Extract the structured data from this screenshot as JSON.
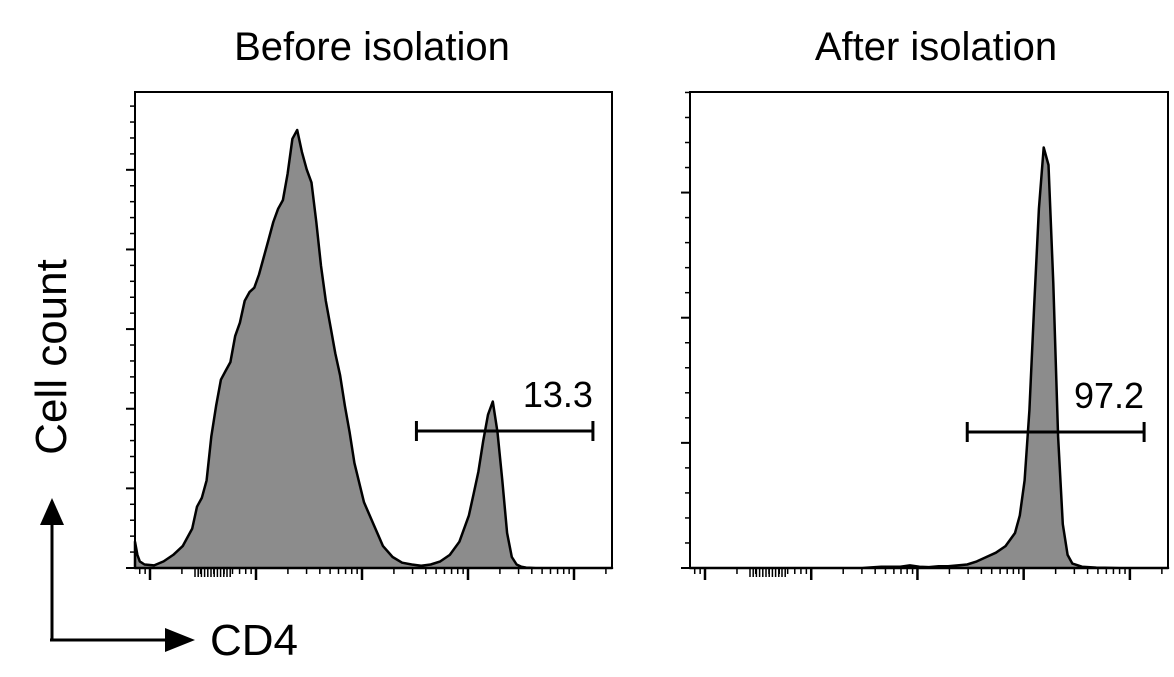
{
  "figure": {
    "y_axis_label": "Cell count",
    "x_axis_label": "CD4"
  },
  "chart_data": [
    {
      "type": "area",
      "title": "Before isolation",
      "xlabel": "CD4",
      "ylabel": "Cell count",
      "x_scale": "log",
      "xlim": [
        0,
        100
      ],
      "ylim": [
        0,
        100
      ],
      "fill_color": "#8c8c8c",
      "line_color": "#000000",
      "gate": {
        "label": "13.3",
        "x_range": [
          59,
          96
        ]
      },
      "series": [
        {
          "x": [
            0,
            0.5,
            1,
            2,
            4,
            6,
            8,
            10,
            12,
            13,
            14,
            15,
            16,
            17,
            18,
            19,
            20,
            21,
            22,
            23,
            24,
            25,
            26,
            27,
            28,
            29,
            30,
            31,
            32,
            33,
            34,
            35,
            36,
            37,
            38,
            39,
            40,
            41,
            42,
            43,
            44,
            45,
            46,
            48,
            50,
            52,
            54,
            56,
            58,
            60,
            62,
            64,
            66,
            68,
            70,
            71,
            72,
            73,
            74,
            75,
            76,
            77,
            78,
            79,
            80,
            81,
            82,
            84,
            86,
            90,
            95,
            100
          ],
          "y": [
            6,
            3,
            1.5,
            0.8,
            0.6,
            1.5,
            3,
            5,
            9,
            14,
            16,
            20,
            30,
            37,
            43,
            45,
            47,
            53,
            56,
            61,
            63,
            64,
            67,
            71,
            75,
            79,
            82,
            84,
            90,
            98,
            100,
            95,
            91,
            88,
            79,
            69,
            61,
            55,
            49,
            44,
            37,
            31,
            24,
            15,
            10,
            5,
            2.5,
            1.2,
            0.8,
            0.5,
            0.8,
            1.5,
            3,
            6,
            12,
            17,
            22,
            29,
            35,
            38,
            31,
            20,
            8,
            2.5,
            0.8,
            0.3,
            0.1,
            0,
            0,
            0,
            0,
            0
          ]
        }
      ]
    },
    {
      "type": "area",
      "title": "After isolation",
      "xlabel": "CD4",
      "ylabel": "Cell count",
      "x_scale": "log",
      "xlim": [
        0,
        100
      ],
      "ylim": [
        0,
        100
      ],
      "fill_color": "#8c8c8c",
      "line_color": "#000000",
      "gate": {
        "label": "97.2",
        "x_range": [
          58,
          95
        ]
      },
      "series": [
        {
          "x": [
            0,
            20,
            36,
            40,
            44,
            46,
            48,
            50,
            52,
            54,
            56,
            58,
            60,
            62,
            64,
            66,
            68,
            69,
            70,
            71,
            72,
            73,
            74,
            75,
            76,
            77,
            78,
            79,
            80,
            82,
            85,
            90,
            100
          ],
          "y": [
            0,
            0,
            0,
            0.3,
            0.3,
            0.6,
            0.3,
            0.2,
            0.4,
            0.4,
            0.6,
            0.8,
            1.5,
            2.5,
            3.5,
            5,
            8,
            12,
            20,
            36,
            60,
            82,
            96,
            92,
            65,
            30,
            10,
            3,
            1,
            0.3,
            0.1,
            0,
            0
          ]
        }
      ]
    }
  ]
}
